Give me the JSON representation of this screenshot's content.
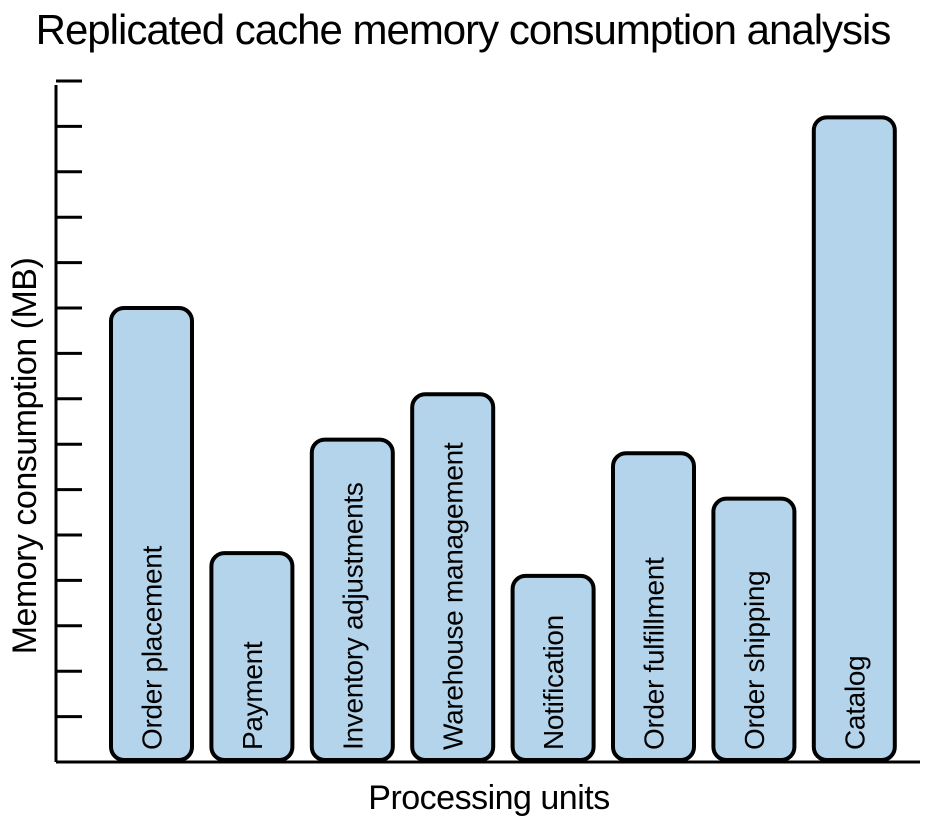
{
  "chart_data": {
    "type": "bar",
    "title": "Replicated cache memory consumption analysis",
    "xlabel": "Processing units",
    "ylabel": "Memory consumption (MB)",
    "categories": [
      "Order placement",
      "Payment",
      "Inventory adjustments",
      "Warehouse management",
      "Notification",
      "Order fulfillment",
      "Order shipping",
      "Catalog"
    ],
    "values": [
      10,
      4.6,
      7.1,
      8.1,
      4.1,
      6.8,
      5.8,
      14.2
    ],
    "ylim": [
      0,
      15
    ],
    "y_ticks": 15,
    "show_tick_labels": false,
    "grid": false,
    "bar_color": "#b3d4ea",
    "bar_outline_color": "#000000"
  }
}
